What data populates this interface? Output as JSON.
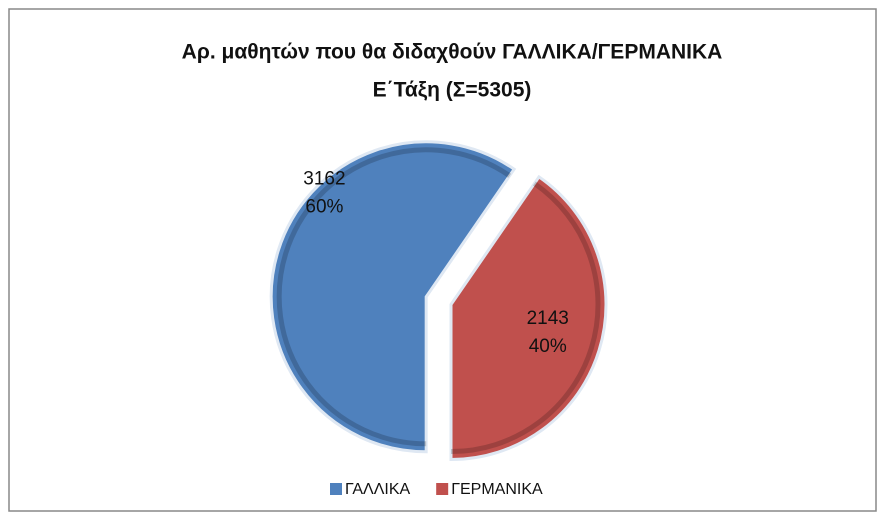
{
  "chart_data": {
    "type": "pie",
    "title": "Αρ. μαθητών που θα διδαχθούν ΓΑΛΛΙΚΑ/ΓΕΡΜΑΝΙΚΑ",
    "subtitle": "Ε΄Τάξη (Σ=5305)",
    "categories": [
      "ΓΑΛΛΙΚΑ",
      "ΓΕΡΜΑΝΙΚΑ"
    ],
    "values": [
      3162,
      2143
    ],
    "percent_labels": [
      "60%",
      "40%"
    ],
    "colors": [
      "#4f81bd",
      "#c0504d"
    ],
    "legend": "bottom"
  }
}
